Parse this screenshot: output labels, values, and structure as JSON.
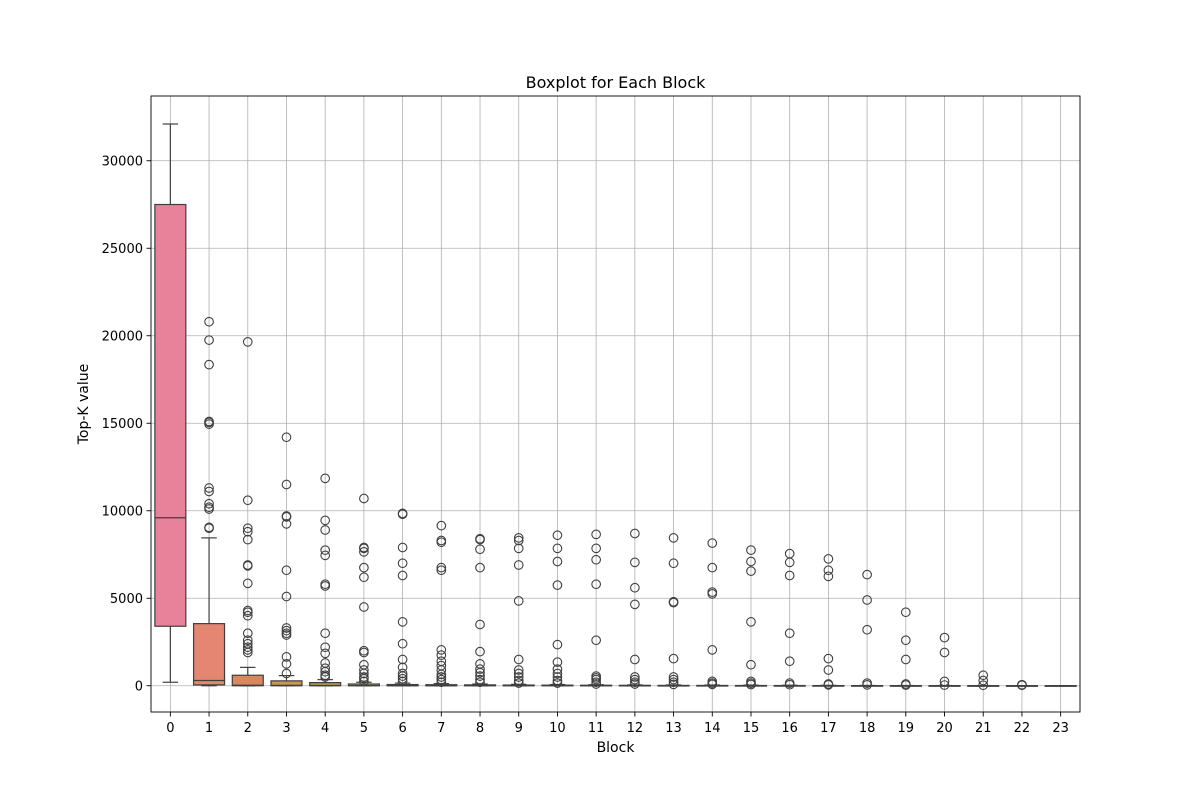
{
  "chart_data": {
    "type": "boxplot",
    "title": "Boxplot for Each Block",
    "xlabel": "Block",
    "ylabel": "Top-K value",
    "categories": [
      "0",
      "1",
      "2",
      "3",
      "4",
      "5",
      "6",
      "7",
      "8",
      "9",
      "10",
      "11",
      "12",
      "13",
      "14",
      "15",
      "16",
      "17",
      "18",
      "19",
      "20",
      "21",
      "22",
      "23"
    ],
    "ylim": [
      -1500,
      33700
    ],
    "yticks": [
      0,
      5000,
      10000,
      15000,
      20000,
      25000,
      30000
    ],
    "grid": true,
    "box_colors": [
      "#E8819A",
      "#E48672",
      "#D9875E",
      "#C89650",
      "#B19A4E",
      "#A29D4B",
      "#97A24A",
      "#8BA548",
      "#6FAF48",
      "#5DB254",
      "#4DB478",
      "#49B497",
      "#47B2AA",
      "#47B0BB",
      "#4AAEC8",
      "#5AACD6",
      "#74A7E2",
      "#939EEB",
      "#B096EE",
      "#C78CEB",
      "#D984E0",
      "#E37DD0",
      "#E87FBF",
      "#E880AF"
    ],
    "boxes": [
      {
        "q1": 3400,
        "median": 9600,
        "q3": 27500,
        "whislo": 200,
        "whishi": 32100,
        "fliers": []
      },
      {
        "q1": 50,
        "median": 300,
        "q3": 3550,
        "whislo": 0,
        "whishi": 8450,
        "fliers": [
          9000,
          9050,
          10100,
          10200,
          10400,
          11100,
          11300,
          14950,
          15050,
          15100,
          18350,
          19750,
          20800
        ]
      },
      {
        "q1": 0,
        "median": 30,
        "q3": 600,
        "whislo": 0,
        "whishi": 1050,
        "fliers": [
          1900,
          2050,
          2200,
          2400,
          2600,
          3000,
          4000,
          4200,
          4300,
          5850,
          6850,
          6900,
          8350,
          8800,
          9000,
          10600,
          19650
        ]
      },
      {
        "q1": 0,
        "median": 25,
        "q3": 280,
        "whislo": 0,
        "whishi": 580,
        "fliers": [
          700,
          1250,
          1650,
          2900,
          3000,
          3150,
          3300,
          5100,
          6600,
          9250,
          9650,
          9700,
          11500,
          14200
        ]
      },
      {
        "q1": 0,
        "median": 15,
        "q3": 180,
        "whislo": 0,
        "whishi": 350,
        "fliers": [
          500,
          600,
          800,
          1000,
          1300,
          1850,
          2200,
          3000,
          5700,
          5800,
          7450,
          7750,
          8900,
          9450,
          11850
        ]
      },
      {
        "q1": 0,
        "median": 10,
        "q3": 100,
        "whislo": 0,
        "whishi": 200,
        "fliers": [
          250,
          400,
          500,
          700,
          900,
          1200,
          1900,
          2000,
          4500,
          6200,
          6750,
          7650,
          7850,
          7900,
          10700
        ]
      },
      {
        "q1": 0,
        "median": 8,
        "q3": 70,
        "whislo": 0,
        "whishi": 150,
        "fliers": [
          250,
          400,
          550,
          700,
          1050,
          1500,
          2400,
          3650,
          6300,
          7000,
          7900,
          9800,
          9850
        ]
      },
      {
        "q1": 0,
        "median": 8,
        "q3": 60,
        "whislo": 0,
        "whishi": 120,
        "fliers": [
          200,
          350,
          500,
          650,
          900,
          1150,
          1400,
          1750,
          2050,
          6600,
          6750,
          8200,
          8300,
          9150
        ]
      },
      {
        "q1": 0,
        "median": 6,
        "q3": 50,
        "whislo": 0,
        "whishi": 100,
        "fliers": [
          200,
          350,
          550,
          750,
          950,
          1250,
          1950,
          3500,
          6750,
          7800,
          8350,
          8400
        ]
      },
      {
        "q1": 0,
        "median": 5,
        "q3": 40,
        "whislo": 0,
        "whishi": 80,
        "fliers": [
          150,
          300,
          500,
          700,
          900,
          1500,
          4850,
          6900,
          7850,
          8300,
          8450
        ]
      },
      {
        "q1": 0,
        "median": 5,
        "q3": 35,
        "whislo": 0,
        "whishi": 70,
        "fliers": [
          150,
          300,
          500,
          700,
          950,
          1350,
          2350,
          5750,
          7100,
          7850,
          8600
        ]
      },
      {
        "q1": 0,
        "median": 4,
        "q3": 30,
        "whislo": 0,
        "whishi": 60,
        "fliers": [
          100,
          200,
          350,
          450,
          550,
          2600,
          5800,
          7200,
          7850,
          8650
        ]
      },
      {
        "q1": 0,
        "median": 4,
        "q3": 25,
        "whislo": 0,
        "whishi": 50,
        "fliers": [
          100,
          200,
          350,
          500,
          1500,
          4650,
          5600,
          7050,
          8700
        ]
      },
      {
        "q1": 0,
        "median": 3,
        "q3": 20,
        "whislo": 0,
        "whishi": 45,
        "fliers": [
          80,
          200,
          350,
          500,
          1550,
          4750,
          4800,
          7000,
          8450
        ]
      },
      {
        "q1": 0,
        "median": 3,
        "q3": 18,
        "whislo": 0,
        "whishi": 40,
        "fliers": [
          80,
          150,
          250,
          2050,
          5250,
          5350,
          6750,
          8150
        ]
      },
      {
        "q1": 0,
        "median": 3,
        "q3": 15,
        "whislo": 0,
        "whishi": 35,
        "fliers": [
          70,
          150,
          250,
          1200,
          3650,
          6550,
          7100,
          7750
        ]
      },
      {
        "q1": 0,
        "median": 2,
        "q3": 12,
        "whislo": 0,
        "whishi": 30,
        "fliers": [
          60,
          150,
          1400,
          3000,
          6300,
          7050,
          7550
        ]
      },
      {
        "q1": 0,
        "median": 2,
        "q3": 10,
        "whislo": 0,
        "whishi": 25,
        "fliers": [
          50,
          100,
          900,
          1550,
          6250,
          6600,
          7250
        ]
      },
      {
        "q1": 0,
        "median": 2,
        "q3": 8,
        "whislo": 0,
        "whishi": 20,
        "fliers": [
          50,
          150,
          3200,
          4900,
          6350
        ]
      },
      {
        "q1": 0,
        "median": 1,
        "q3": 6,
        "whislo": 0,
        "whishi": 15,
        "fliers": [
          40,
          100,
          1500,
          2600,
          4200
        ]
      },
      {
        "q1": 0,
        "median": 1,
        "q3": 5,
        "whislo": 0,
        "whishi": 12,
        "fliers": [
          40,
          250,
          1900,
          2750
        ]
      },
      {
        "q1": 0,
        "median": 1,
        "q3": 4,
        "whislo": 0,
        "whishi": 10,
        "fliers": [
          30,
          300,
          600
        ]
      },
      {
        "q1": 0,
        "median": 1,
        "q3": 3,
        "whislo": 0,
        "whishi": 8,
        "fliers": [
          30,
          60
        ]
      },
      {
        "q1": 0,
        "median": 0,
        "q3": 2,
        "whislo": 0,
        "whishi": 5,
        "fliers": []
      }
    ]
  }
}
